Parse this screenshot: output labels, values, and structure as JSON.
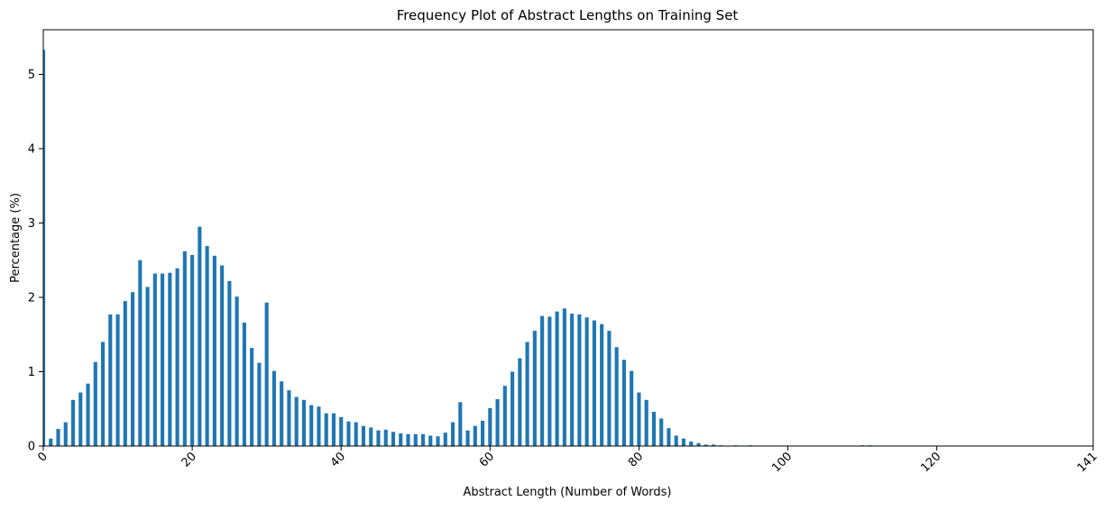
{
  "chart_data": {
    "type": "bar",
    "title": "Frequency Plot of Abstract Lengths on Training Set",
    "xlabel": "Abstract Length (Number of Words)",
    "ylabel": "Percentage (%)",
    "xlim": [
      0,
      141
    ],
    "ylim": [
      0,
      5.6
    ],
    "x_ticks": [
      "0",
      "20",
      "40",
      "60",
      "80",
      "100",
      "120",
      "141"
    ],
    "x_tick_values": [
      0,
      20,
      40,
      60,
      80,
      100,
      120,
      141
    ],
    "y_ticks": [
      "0",
      "1",
      "2",
      "3",
      "4",
      "5"
    ],
    "y_tick_values": [
      0,
      1,
      2,
      3,
      4,
      5
    ],
    "x_tick_rotation": 45,
    "grid": false,
    "bar_color": "#1f77b4",
    "x": [
      0,
      1,
      2,
      3,
      4,
      5,
      6,
      7,
      8,
      9,
      10,
      11,
      12,
      13,
      14,
      15,
      16,
      17,
      18,
      19,
      20,
      21,
      22,
      23,
      24,
      25,
      26,
      27,
      28,
      29,
      30,
      31,
      32,
      33,
      34,
      35,
      36,
      37,
      38,
      39,
      40,
      41,
      42,
      43,
      44,
      45,
      46,
      47,
      48,
      49,
      50,
      51,
      52,
      53,
      54,
      55,
      56,
      57,
      58,
      59,
      60,
      61,
      62,
      63,
      64,
      65,
      66,
      67,
      68,
      69,
      70,
      71,
      72,
      73,
      74,
      75,
      76,
      77,
      78,
      79,
      80,
      81,
      82,
      83,
      84,
      85,
      86,
      87,
      88,
      89,
      90,
      91,
      93,
      95,
      98,
      100,
      108,
      110,
      111
    ],
    "values": [
      5.33,
      0.1,
      0.23,
      0.32,
      0.62,
      0.72,
      0.84,
      1.13,
      1.4,
      1.77,
      1.77,
      1.95,
      2.07,
      2.5,
      2.14,
      2.32,
      2.32,
      2.33,
      2.39,
      2.62,
      2.57,
      2.95,
      2.69,
      2.56,
      2.43,
      2.22,
      2.01,
      1.66,
      1.32,
      1.12,
      1.93,
      1.01,
      0.87,
      0.75,
      0.66,
      0.62,
      0.55,
      0.53,
      0.44,
      0.44,
      0.39,
      0.33,
      0.32,
      0.27,
      0.25,
      0.21,
      0.22,
      0.19,
      0.17,
      0.16,
      0.16,
      0.16,
      0.14,
      0.13,
      0.18,
      0.32,
      0.59,
      0.21,
      0.27,
      0.34,
      0.51,
      0.63,
      0.81,
      1.0,
      1.18,
      1.4,
      1.55,
      1.75,
      1.74,
      1.81,
      1.85,
      1.78,
      1.77,
      1.73,
      1.69,
      1.64,
      1.55,
      1.33,
      1.16,
      1.01,
      0.72,
      0.62,
      0.46,
      0.37,
      0.24,
      0.14,
      0.1,
      0.06,
      0.04,
      0.02,
      0.02,
      0.01,
      0.01,
      0.01,
      0.005,
      0.005,
      0.005,
      0.01,
      0.01
    ]
  }
}
